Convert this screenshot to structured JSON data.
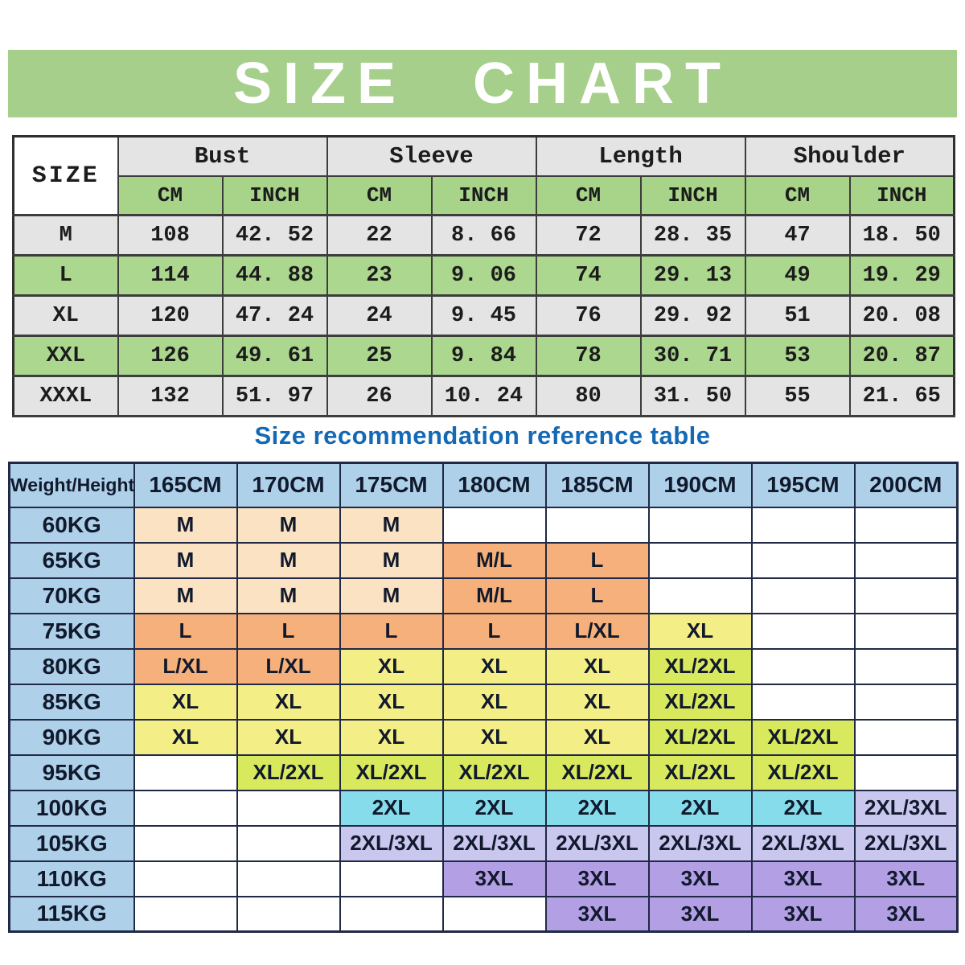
{
  "banner": {
    "title": "SIZE CHART"
  },
  "section": {
    "recommendation_title": "Size recommendation reference table"
  },
  "colors": {
    "banner_green": "#a6cf8c",
    "row_gray": "#e4e4e4",
    "row_green": "#abd78e",
    "unit_header_green": "#a7d489",
    "title_blue": "#1569b4",
    "header_blue": "#aed1e9",
    "peach": "#fbe2c2",
    "orange": "#f5b07b",
    "yellow": "#f3ee85",
    "yellow_green": "#d9e95e",
    "cyan": "#86dcea",
    "lavender": "#cac7ef",
    "purple": "#b29fe4",
    "white": "#ffffff"
  },
  "chart_data": [
    {
      "type": "table",
      "name": "size_measurements",
      "title": "SIZE CHART",
      "corner_label": "SIZE",
      "column_groups": [
        "Bust",
        "Sleeve",
        "Length",
        "Shoulder"
      ],
      "subcolumns": [
        "CM",
        "INCH"
      ],
      "rows": [
        {
          "size": "M",
          "values": [
            "108",
            "42. 52",
            "22",
            "8. 66",
            "72",
            "28. 35",
            "47",
            "18. 50"
          ]
        },
        {
          "size": "L",
          "values": [
            "114",
            "44. 88",
            "23",
            "9. 06",
            "74",
            "29. 13",
            "49",
            "19. 29"
          ]
        },
        {
          "size": "XL",
          "values": [
            "120",
            "47. 24",
            "24",
            "9. 45",
            "76",
            "29. 92",
            "51",
            "20. 08"
          ]
        },
        {
          "size": "XXL",
          "values": [
            "126",
            "49. 61",
            "25",
            "9. 84",
            "78",
            "30. 71",
            "53",
            "20. 87"
          ]
        },
        {
          "size": "XXXL",
          "values": [
            "132",
            "51. 97",
            "26",
            "10. 24",
            "80",
            "31. 50",
            "55",
            "21. 65"
          ]
        }
      ]
    },
    {
      "type": "table",
      "name": "size_recommendation",
      "title": "Size recommendation reference table",
      "corner_label": "Weight/Height",
      "columns": [
        "165CM",
        "170CM",
        "175CM",
        "180CM",
        "185CM",
        "190CM",
        "195CM",
        "200CM"
      ],
      "rows": [
        {
          "weight": "60KG",
          "cells": [
            {
              "label": "M",
              "color": "peach"
            },
            {
              "label": "M",
              "color": "peach"
            },
            {
              "label": "M",
              "color": "peach"
            },
            {
              "label": "",
              "color": "white"
            },
            {
              "label": "",
              "color": "white"
            },
            {
              "label": "",
              "color": "white"
            },
            {
              "label": "",
              "color": "white"
            },
            {
              "label": "",
              "color": "white"
            }
          ]
        },
        {
          "weight": "65KG",
          "cells": [
            {
              "label": "M",
              "color": "peach"
            },
            {
              "label": "M",
              "color": "peach"
            },
            {
              "label": "M",
              "color": "peach"
            },
            {
              "label": "M/L",
              "color": "orange"
            },
            {
              "label": "L",
              "color": "orange"
            },
            {
              "label": "",
              "color": "white"
            },
            {
              "label": "",
              "color": "white"
            },
            {
              "label": "",
              "color": "white"
            }
          ]
        },
        {
          "weight": "70KG",
          "cells": [
            {
              "label": "M",
              "color": "peach"
            },
            {
              "label": "M",
              "color": "peach"
            },
            {
              "label": "M",
              "color": "peach"
            },
            {
              "label": "M/L",
              "color": "orange"
            },
            {
              "label": "L",
              "color": "orange"
            },
            {
              "label": "",
              "color": "white"
            },
            {
              "label": "",
              "color": "white"
            },
            {
              "label": "",
              "color": "white"
            }
          ]
        },
        {
          "weight": "75KG",
          "cells": [
            {
              "label": "L",
              "color": "orange"
            },
            {
              "label": "L",
              "color": "orange"
            },
            {
              "label": "L",
              "color": "orange"
            },
            {
              "label": "L",
              "color": "orange"
            },
            {
              "label": "L/XL",
              "color": "orange"
            },
            {
              "label": "XL",
              "color": "yellow"
            },
            {
              "label": "",
              "color": "white"
            },
            {
              "label": "",
              "color": "white"
            }
          ]
        },
        {
          "weight": "80KG",
          "cells": [
            {
              "label": "L/XL",
              "color": "orange"
            },
            {
              "label": "L/XL",
              "color": "orange"
            },
            {
              "label": "XL",
              "color": "yellow"
            },
            {
              "label": "XL",
              "color": "yellow"
            },
            {
              "label": "XL",
              "color": "yellow"
            },
            {
              "label": "XL/2XL",
              "color": "yellow_green"
            },
            {
              "label": "",
              "color": "white"
            },
            {
              "label": "",
              "color": "white"
            }
          ]
        },
        {
          "weight": "85KG",
          "cells": [
            {
              "label": "XL",
              "color": "yellow"
            },
            {
              "label": "XL",
              "color": "yellow"
            },
            {
              "label": "XL",
              "color": "yellow"
            },
            {
              "label": "XL",
              "color": "yellow"
            },
            {
              "label": "XL",
              "color": "yellow"
            },
            {
              "label": "XL/2XL",
              "color": "yellow_green"
            },
            {
              "label": "",
              "color": "white"
            },
            {
              "label": "",
              "color": "white"
            }
          ]
        },
        {
          "weight": "90KG",
          "cells": [
            {
              "label": "XL",
              "color": "yellow"
            },
            {
              "label": "XL",
              "color": "yellow"
            },
            {
              "label": "XL",
              "color": "yellow"
            },
            {
              "label": "XL",
              "color": "yellow"
            },
            {
              "label": "XL",
              "color": "yellow"
            },
            {
              "label": "XL/2XL",
              "color": "yellow_green"
            },
            {
              "label": "XL/2XL",
              "color": "yellow_green"
            },
            {
              "label": "",
              "color": "white"
            }
          ]
        },
        {
          "weight": "95KG",
          "cells": [
            {
              "label": "",
              "color": "white"
            },
            {
              "label": "XL/2XL",
              "color": "yellow_green"
            },
            {
              "label": "XL/2XL",
              "color": "yellow_green"
            },
            {
              "label": "XL/2XL",
              "color": "yellow_green"
            },
            {
              "label": "XL/2XL",
              "color": "yellow_green"
            },
            {
              "label": "XL/2XL",
              "color": "yellow_green"
            },
            {
              "label": "XL/2XL",
              "color": "yellow_green"
            },
            {
              "label": "",
              "color": "white"
            }
          ]
        },
        {
          "weight": "100KG",
          "cells": [
            {
              "label": "",
              "color": "white"
            },
            {
              "label": "",
              "color": "white"
            },
            {
              "label": "2XL",
              "color": "cyan"
            },
            {
              "label": "2XL",
              "color": "cyan"
            },
            {
              "label": "2XL",
              "color": "cyan"
            },
            {
              "label": "2XL",
              "color": "cyan"
            },
            {
              "label": "2XL",
              "color": "cyan"
            },
            {
              "label": "2XL/3XL",
              "color": "lavender"
            }
          ]
        },
        {
          "weight": "105KG",
          "cells": [
            {
              "label": "",
              "color": "white"
            },
            {
              "label": "",
              "color": "white"
            },
            {
              "label": "2XL/3XL",
              "color": "lavender"
            },
            {
              "label": "2XL/3XL",
              "color": "lavender"
            },
            {
              "label": "2XL/3XL",
              "color": "lavender"
            },
            {
              "label": "2XL/3XL",
              "color": "lavender"
            },
            {
              "label": "2XL/3XL",
              "color": "lavender"
            },
            {
              "label": "2XL/3XL",
              "color": "lavender"
            }
          ]
        },
        {
          "weight": "110KG",
          "cells": [
            {
              "label": "",
              "color": "white"
            },
            {
              "label": "",
              "color": "white"
            },
            {
              "label": "",
              "color": "white"
            },
            {
              "label": "3XL",
              "color": "purple"
            },
            {
              "label": "3XL",
              "color": "purple"
            },
            {
              "label": "3XL",
              "color": "purple"
            },
            {
              "label": "3XL",
              "color": "purple"
            },
            {
              "label": "3XL",
              "color": "purple"
            }
          ]
        },
        {
          "weight": "115KG",
          "cells": [
            {
              "label": "",
              "color": "white"
            },
            {
              "label": "",
              "color": "white"
            },
            {
              "label": "",
              "color": "white"
            },
            {
              "label": "",
              "color": "white"
            },
            {
              "label": "3XL",
              "color": "purple"
            },
            {
              "label": "3XL",
              "color": "purple"
            },
            {
              "label": "3XL",
              "color": "purple"
            },
            {
              "label": "3XL",
              "color": "purple"
            }
          ]
        }
      ]
    }
  ]
}
